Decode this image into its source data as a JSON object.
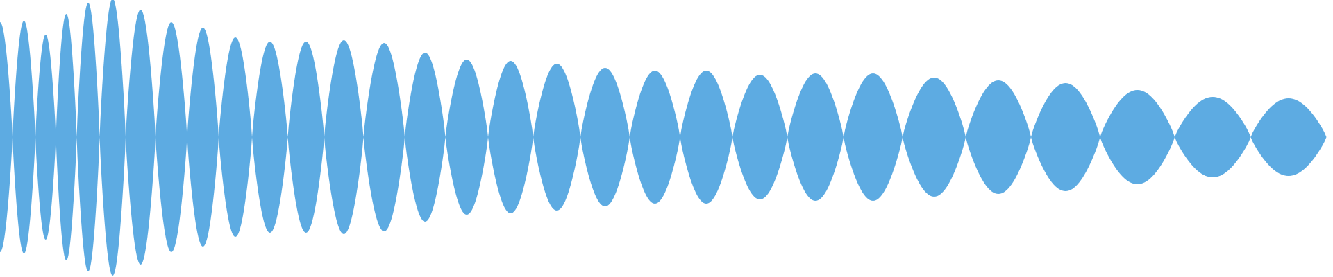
{
  "waveform": {
    "color": "#5DABE2",
    "lobes": [
      {
        "center": 0,
        "amplitude": 0.83
      },
      {
        "center": 36,
        "amplitude": 0.84
      },
      {
        "center": 66,
        "amplitude": 0.74
      },
      {
        "center": 95,
        "amplitude": 0.89
      },
      {
        "center": 126,
        "amplitude": 0.97
      },
      {
        "center": 161,
        "amplitude": 1.0
      },
      {
        "center": 201,
        "amplitude": 0.92
      },
      {
        "center": 247,
        "amplitude": 0.83
      },
      {
        "center": 292,
        "amplitude": 0.79
      },
      {
        "center": 338,
        "amplitude": 0.72
      },
      {
        "center": 388,
        "amplitude": 0.69
      },
      {
        "center": 441,
        "amplitude": 0.69
      },
      {
        "center": 493,
        "amplitude": 0.7
      },
      {
        "center": 554,
        "amplitude": 0.68
      },
      {
        "center": 612,
        "amplitude": 0.61
      },
      {
        "center": 671,
        "amplitude": 0.56
      },
      {
        "center": 735,
        "amplitude": 0.55
      },
      {
        "center": 801,
        "amplitude": 0.53
      },
      {
        "center": 871,
        "amplitude": 0.5
      },
      {
        "center": 943,
        "amplitude": 0.48
      },
      {
        "center": 1016,
        "amplitude": 0.48
      },
      {
        "center": 1094,
        "amplitude": 0.45
      },
      {
        "center": 1174,
        "amplitude": 0.46
      },
      {
        "center": 1256,
        "amplitude": 0.46
      },
      {
        "center": 1344,
        "amplitude": 0.43
      },
      {
        "center": 1438,
        "amplitude": 0.41
      },
      {
        "center": 1532,
        "amplitude": 0.39
      },
      {
        "center": 1637,
        "amplitude": 0.34
      },
      {
        "center": 1747,
        "amplitude": 0.29
      },
      {
        "center": 1856,
        "amplitude": 0.28
      }
    ]
  }
}
